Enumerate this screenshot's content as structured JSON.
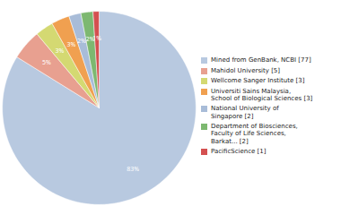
{
  "chart_data": {
    "type": "pie",
    "categories": [
      "Mined from GenBank, NCBI [77]",
      "Mahidol University [5]",
      "Wellcome Sanger Institute [3]",
      "Universiti Sains Malaysia,\nSchool of Biological Sciences [3]",
      "National University of\nSingapore [2]",
      "Department of Biosciences,\nFaculty of Life Sciences,\nBarkat... [2]",
      "PacificScience [1]"
    ],
    "values": [
      83,
      5,
      3,
      3,
      2,
      2,
      1
    ],
    "value_labels": [
      "83%",
      "5%",
      "3%",
      "3%",
      "2%",
      "2%",
      "1%"
    ],
    "colors": [
      "#b8c9e0",
      "#e8a090",
      "#d4d972",
      "#f0a050",
      "#a8bcd8",
      "#7db870",
      "#d45050"
    ],
    "data_labels": true,
    "legend": "right"
  }
}
